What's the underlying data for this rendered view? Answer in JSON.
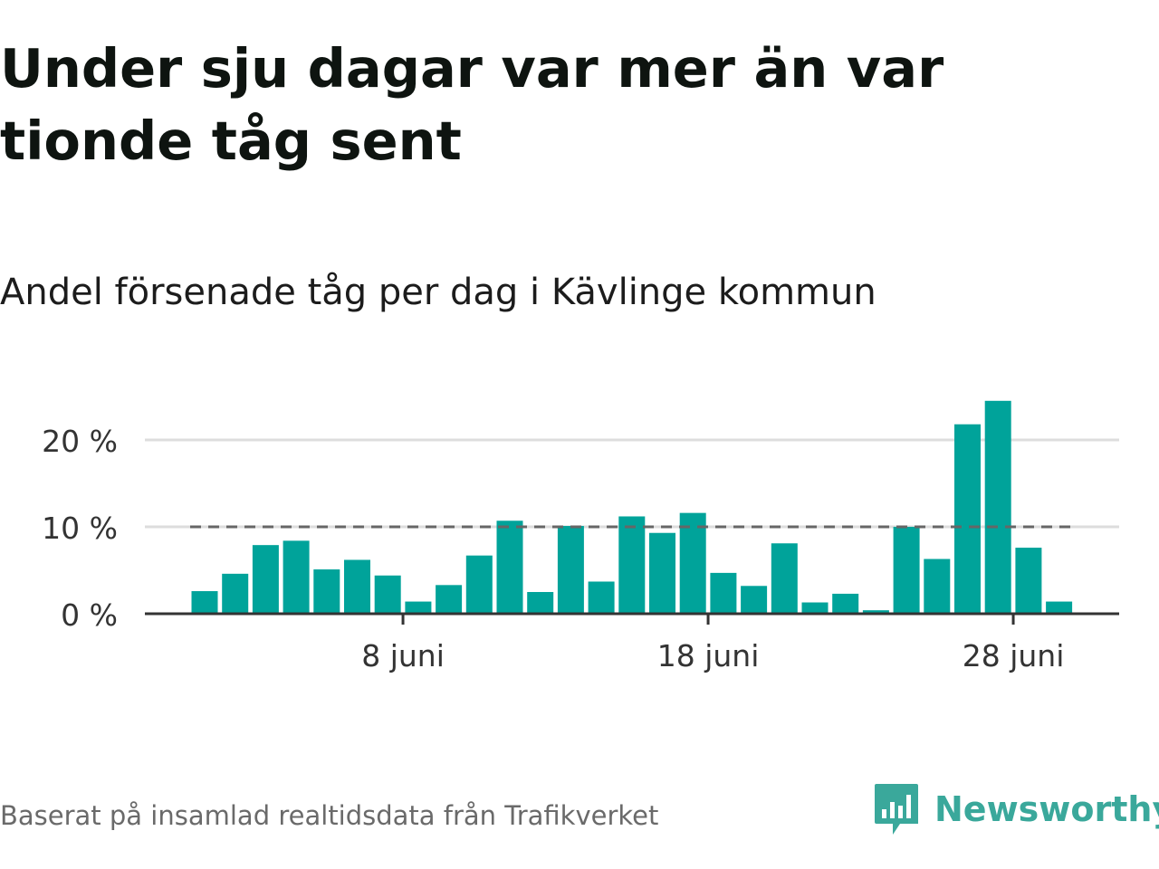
{
  "title": "Under sju dagar var mer än var tionde tåg sent",
  "subtitle": "Andel försenade tåg per dag i Kävlinge kommun",
  "footer": "Baserat på insamlad realtidsdata från Trafikverket",
  "brand": "Newsworthy",
  "colors": {
    "bar": "#00a39a",
    "reference_line": "#666666",
    "grid": "#dddddd",
    "axis": "#333333",
    "brand": "#3aa89b"
  },
  "chart_data": {
    "type": "bar",
    "x_type": "date",
    "x": [
      "2020-06-01",
      "2020-06-02",
      "2020-06-03",
      "2020-06-04",
      "2020-06-05",
      "2020-06-06",
      "2020-06-07",
      "2020-06-08",
      "2020-06-09",
      "2020-06-10",
      "2020-06-11",
      "2020-06-12",
      "2020-06-13",
      "2020-06-14",
      "2020-06-15",
      "2020-06-16",
      "2020-06-17",
      "2020-06-18",
      "2020-06-19",
      "2020-06-20",
      "2020-06-21",
      "2020-06-22",
      "2020-06-23",
      "2020-06-24",
      "2020-06-25",
      "2020-06-26",
      "2020-06-27",
      "2020-06-28",
      "2020-06-29"
    ],
    "values": [
      2.6,
      4.6,
      7.9,
      8.4,
      5.1,
      6.2,
      4.4,
      1.4,
      3.3,
      6.7,
      10.7,
      2.5,
      10.1,
      3.7,
      11.2,
      9.3,
      11.6,
      4.7,
      3.2,
      8.1,
      1.3,
      2.3,
      0.4,
      10.0,
      6.3,
      21.8,
      24.5,
      7.6,
      1.4
    ],
    "reference_line": 10,
    "y_ticks": [
      0,
      10,
      20
    ],
    "y_tick_labels": [
      "0 %",
      "10 %",
      "20 %"
    ],
    "x_ticks": [
      "2020-06-08",
      "2020-06-18",
      "2020-06-28"
    ],
    "x_tick_labels": [
      "8 juni",
      "18 juni",
      "28 juni"
    ],
    "ylim": [
      0,
      25
    ],
    "grid": true
  }
}
